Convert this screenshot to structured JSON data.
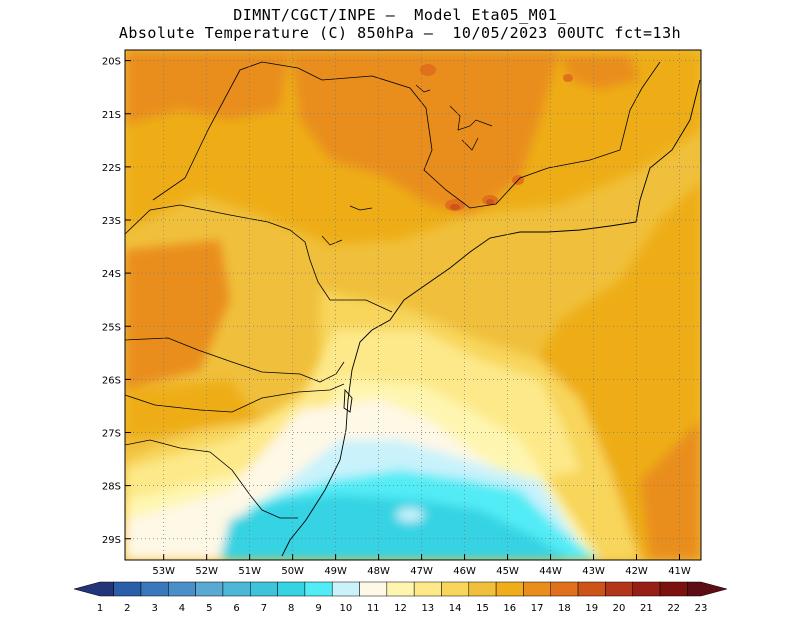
{
  "header": {
    "line1": "DIMNT/CGCT/INPE –  Model Eta05_M01_",
    "line2": "Absolute Temperature (C) 850hPa –  10/05/2023 00UTC fct=13h"
  },
  "map": {
    "lat_labels": [
      "20S",
      "21S",
      "22S",
      "23S",
      "24S",
      "25S",
      "26S",
      "27S",
      "28S",
      "29S"
    ],
    "lon_labels": [
      "53W",
      "52W",
      "51W",
      "50W",
      "49W",
      "48W",
      "47W",
      "46W",
      "45W",
      "44W",
      "43W",
      "42W",
      "41W"
    ],
    "lon_range": [
      -53.9,
      -40.5
    ],
    "lat_range": [
      -29.4,
      -19.8
    ],
    "gridlines": "dotted"
  },
  "colorbar": {
    "labels": [
      "1",
      "2",
      "3",
      "4",
      "5",
      "6",
      "7",
      "8",
      "9",
      "10",
      "11",
      "12",
      "13",
      "14",
      "15",
      "16",
      "17",
      "18",
      "19",
      "20",
      "21",
      "22",
      "23"
    ],
    "colors": [
      "#23357a",
      "#2a5ea8",
      "#3a78bb",
      "#4a8fc8",
      "#5aa9d3",
      "#4cb7d6",
      "#3fc3db",
      "#36d3e3",
      "#52ecf6",
      "#c9f2fb",
      "#fef8e6",
      "#fef6b0",
      "#fde98a",
      "#f8d65c",
      "#f0c03c",
      "#eead19",
      "#e98e1d",
      "#e0701c",
      "#cc5418",
      "#b2361a",
      "#962016",
      "#7c1210",
      "#5e0d14"
    ]
  }
}
